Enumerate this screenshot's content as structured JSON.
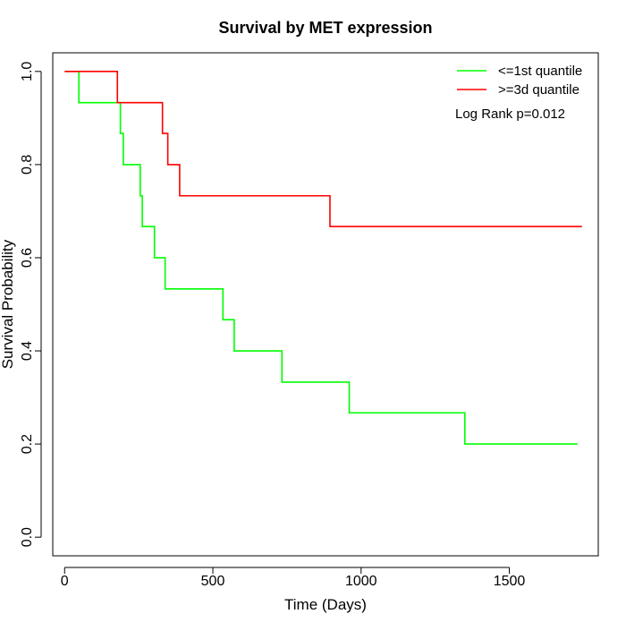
{
  "chart_data": {
    "type": "line",
    "title": "Survival by MET expression",
    "xlabel": "Time (Days)",
    "ylabel": "Survival Probability",
    "xlim": [
      -40,
      1800
    ],
    "ylim": [
      -0.04,
      1.04
    ],
    "xticks": [
      0,
      500,
      1000,
      1500
    ],
    "yticks": [
      0.0,
      0.2,
      0.4,
      0.6,
      0.8,
      1.0
    ],
    "xtick_labels": [
      "0",
      "500",
      "1000",
      "1500"
    ],
    "ytick_labels": [
      "0.0",
      "0.2",
      "0.4",
      "0.6",
      "0.8",
      "1.0"
    ],
    "grid": false,
    "legend_position": "top-right",
    "annotation": "Log Rank p=0.012",
    "series": [
      {
        "name": "<=1st quantile",
        "color": "#00ff00",
        "step": true,
        "x": [
          0,
          48,
          188,
          198,
          255,
          262,
          303,
          339,
          534,
          572,
          733,
          960,
          1350,
          1730
        ],
        "y": [
          1.0,
          0.933,
          0.867,
          0.8,
          0.733,
          0.667,
          0.6,
          0.533,
          0.467,
          0.4,
          0.333,
          0.267,
          0.2,
          0.2
        ]
      },
      {
        "name": ">=3d quantile",
        "color": "#ff0000",
        "step": true,
        "x": [
          0,
          178,
          330,
          348,
          388,
          895,
          1745
        ],
        "y": [
          1.0,
          0.933,
          0.867,
          0.8,
          0.733,
          0.667,
          0.667
        ]
      }
    ]
  }
}
